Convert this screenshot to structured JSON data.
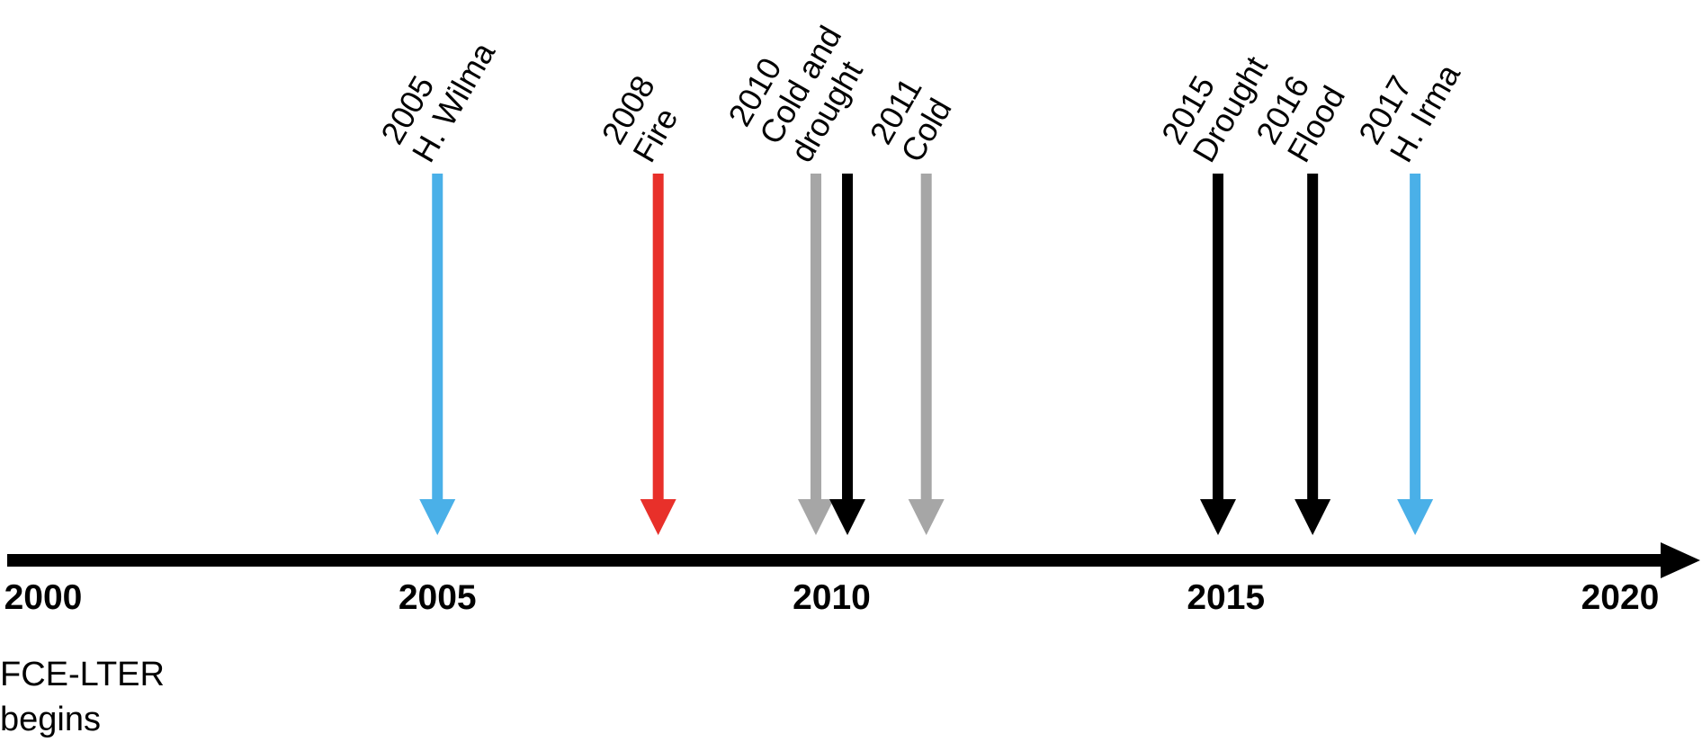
{
  "axis": {
    "start_year": 2000,
    "end_year": 2020,
    "tick_labels": [
      "2000",
      "2005",
      "2010",
      "2015",
      "2020"
    ],
    "color": "#000000"
  },
  "events": [
    {
      "year": 2005.0,
      "color": "#4AB0E8",
      "lines": [
        "2005",
        "H. Wilma"
      ]
    },
    {
      "year": 2007.8,
      "color": "#E8302A",
      "lines": [
        "2008",
        "Fire"
      ]
    },
    {
      "year": 2009.8,
      "color": "#A6A6A6",
      "lines": [
        "2010",
        "Cold and",
        "drought"
      ]
    },
    {
      "year": 2010.2,
      "color": "#000000",
      "lines": []
    },
    {
      "year": 2011.2,
      "color": "#A6A6A6",
      "lines": [
        "2011",
        "Cold"
      ]
    },
    {
      "year": 2014.9,
      "color": "#000000",
      "lines": [
        "2015",
        "Drought"
      ]
    },
    {
      "year": 2016.1,
      "color": "#000000",
      "lines": [
        "2016",
        "Flood"
      ]
    },
    {
      "year": 2017.4,
      "color": "#4AB0E8",
      "lines": [
        "2017",
        "H. Irma"
      ]
    }
  ],
  "note": {
    "line1": "FCE-LTER",
    "line2": "begins"
  }
}
